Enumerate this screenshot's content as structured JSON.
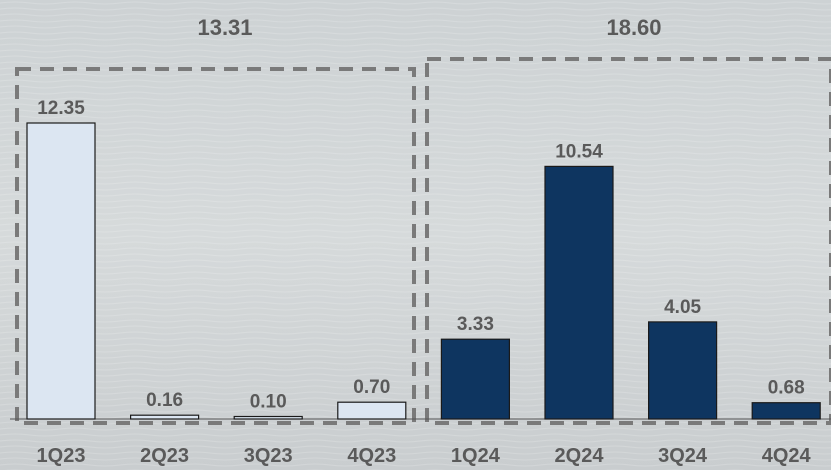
{
  "chart_data": {
    "type": "bar",
    "categories": [
      "1Q23",
      "2Q23",
      "3Q23",
      "4Q23",
      "1Q24",
      "2Q24",
      "3Q24",
      "4Q24"
    ],
    "values": [
      12.35,
      0.16,
      0.1,
      0.7,
      3.33,
      10.54,
      4.05,
      0.68
    ],
    "labels": [
      "12.35",
      "0.16",
      "0.10",
      "0.70",
      "3.33",
      "10.54",
      "4.05",
      "0.68"
    ],
    "groups": [
      {
        "total": "13.31",
        "categories": [
          "1Q23",
          "2Q23",
          "3Q23",
          "4Q23"
        ],
        "color": "#dce6f2"
      },
      {
        "total": "18.60",
        "categories": [
          "1Q24",
          "2Q24",
          "3Q24",
          "4Q24"
        ],
        "color": "#0e3560"
      }
    ],
    "title": "",
    "xlabel": "",
    "ylabel": "",
    "ylim": [
      0,
      14
    ],
    "grid": false,
    "legend": "none"
  },
  "colors": {
    "bar_outline": "#1a1a1a",
    "dash_box": "#7a7a7a",
    "text": "#5a5a5a",
    "baseline": "#555555"
  }
}
